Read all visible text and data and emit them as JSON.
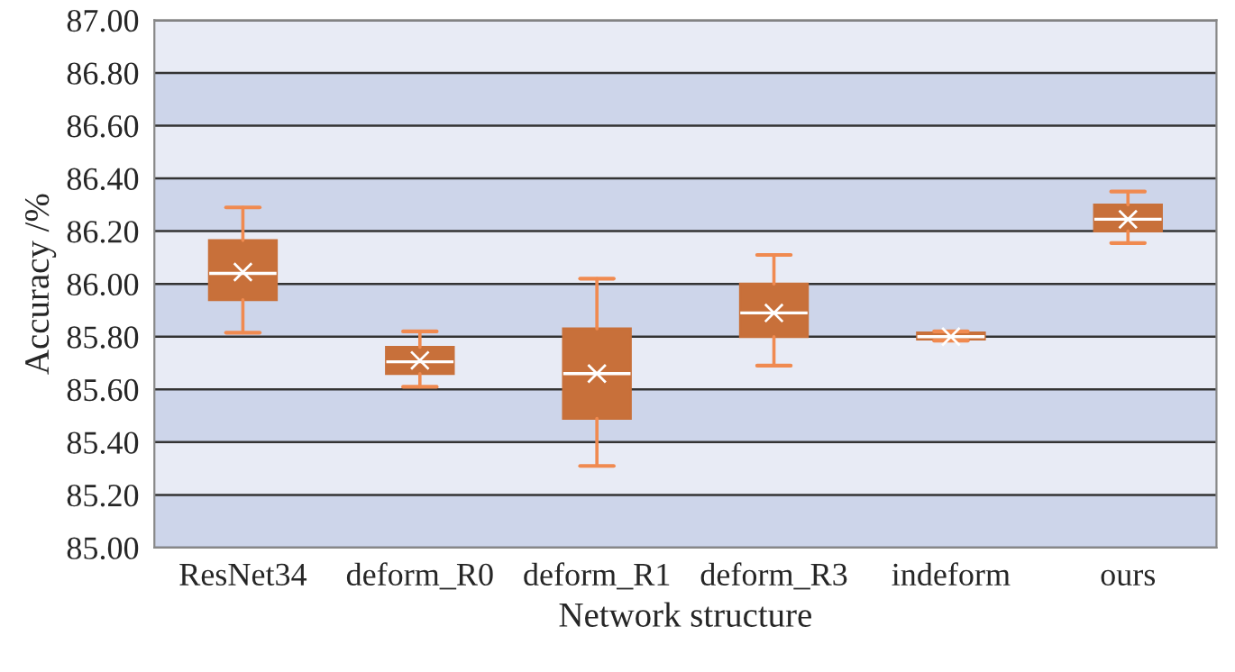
{
  "chart_data": {
    "type": "box",
    "xlabel": "Network structure",
    "ylabel": "Accuracy /%",
    "categories": [
      "ResNet34",
      "deform_R0",
      "deform_R1",
      "deform_R3",
      "indeform",
      "ours"
    ],
    "boxes": [
      {
        "low": 85.815,
        "q1": 85.94,
        "median": 86.04,
        "q3": 86.165,
        "high": 86.29,
        "mean": 86.045
      },
      {
        "low": 85.61,
        "q1": 85.66,
        "median": 85.705,
        "q3": 85.76,
        "high": 85.82,
        "mean": 85.71
      },
      {
        "low": 85.31,
        "q1": 85.49,
        "median": 85.66,
        "q3": 85.83,
        "high": 86.02,
        "mean": 85.66
      },
      {
        "low": 85.69,
        "q1": 85.8,
        "median": 85.89,
        "q3": 86.0,
        "high": 86.11,
        "mean": 85.89
      },
      {
        "low": 85.785,
        "q1": 85.79,
        "median": 85.8,
        "q3": 85.815,
        "high": 85.82,
        "mean": 85.8
      },
      {
        "low": 86.155,
        "q1": 86.2,
        "median": 86.245,
        "q3": 86.3,
        "high": 86.35,
        "mean": 86.245
      }
    ],
    "color": "#c8703a",
    "ylim": [
      85.0,
      87.0
    ],
    "yticks": [
      {
        "value": 85.0,
        "label": "85.00"
      },
      {
        "value": 85.2,
        "label": "85.20"
      },
      {
        "value": 85.4,
        "label": "85.40"
      },
      {
        "value": 85.6,
        "label": "85.60"
      },
      {
        "value": 85.8,
        "label": "85.80"
      },
      {
        "value": 86.0,
        "label": "86.00"
      },
      {
        "value": 86.2,
        "label": "86.20"
      },
      {
        "value": 86.4,
        "label": "86.40"
      },
      {
        "value": 86.6,
        "label": "86.60"
      },
      {
        "value": 86.8,
        "label": "86.80"
      },
      {
        "value": 87.0,
        "label": "87.00"
      }
    ],
    "bands": [
      {
        "axis": "y",
        "from": 85.0,
        "to": 85.2,
        "color": "#cdd5ea"
      },
      {
        "axis": "y",
        "from": 85.4,
        "to": 85.6,
        "color": "#cdd5ea"
      },
      {
        "axis": "y",
        "from": 85.8,
        "to": 86.0,
        "color": "#cdd5ea"
      },
      {
        "axis": "y",
        "from": 86.2,
        "to": 86.4,
        "color": "#cdd5ea"
      },
      {
        "axis": "y",
        "from": 86.6,
        "to": 86.8,
        "color": "#cdd5ea"
      }
    ],
    "grid": "y",
    "legend": false,
    "marker": "cross"
  }
}
